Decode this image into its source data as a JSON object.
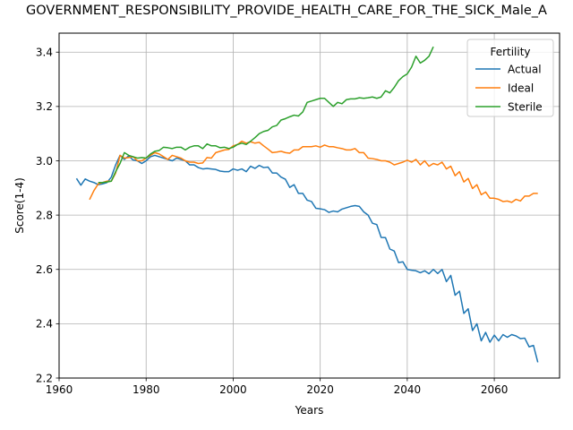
{
  "chart_data": {
    "type": "line",
    "title": "GOVERNMENT_RESPONSIBILITY_PROVIDE_HEALTH_CARE_FOR_THE_SICK_Male_A",
    "xlabel": "Years",
    "ylabel": "Score(1-4)",
    "xlim": [
      1960,
      2075
    ],
    "ylim": [
      2.2,
      3.47
    ],
    "xticks": [
      1960,
      1980,
      2000,
      2020,
      2040,
      2060
    ],
    "yticks": [
      2.2,
      2.4,
      2.6,
      2.8,
      3.0,
      3.2,
      3.4
    ],
    "xtick_labels": [
      "1960",
      "1980",
      "2000",
      "2020",
      "2040",
      "2060"
    ],
    "ytick_labels": [
      "2.2",
      "2.4",
      "2.6",
      "2.8",
      "3.0",
      "3.2",
      "3.4"
    ],
    "grid": true,
    "legend": {
      "title": "Fertility",
      "placement": "top-right"
    },
    "series": [
      {
        "name": "Actual",
        "color": "#1f77b4",
        "x": [
          1964,
          1965,
          1966,
          1967,
          1968,
          1969,
          1970,
          1971,
          1972,
          1973,
          1974,
          1975,
          1976,
          1977,
          1978,
          1979,
          1980,
          1981,
          1982,
          1983,
          1984,
          1985,
          1986,
          1987,
          1988,
          1989,
          1990,
          1991,
          1992,
          1993,
          1994,
          1995,
          1996,
          1997,
          1998,
          1999,
          2000,
          2001,
          2002,
          2003,
          2004,
          2005,
          2006,
          2007,
          2008,
          2009,
          2010,
          2011,
          2012,
          2013,
          2014,
          2015,
          2016,
          2017,
          2018,
          2019,
          2020,
          2021,
          2022,
          2023,
          2024,
          2025,
          2026,
          2027,
          2028,
          2029,
          2030,
          2031,
          2032,
          2033,
          2034,
          2035,
          2036,
          2037,
          2038,
          2039,
          2040,
          2041,
          2042,
          2043,
          2044,
          2045,
          2046,
          2047,
          2048,
          2049,
          2050,
          2051,
          2052,
          2053,
          2054,
          2055,
          2056,
          2057,
          2058,
          2059,
          2060,
          2061,
          2062,
          2063,
          2064,
          2065,
          2066,
          2067,
          2068,
          2069,
          2070
        ],
        "values": [
          2.935,
          2.91,
          2.933,
          2.925,
          2.92,
          2.912,
          2.915,
          2.92,
          2.94,
          2.985,
          3.02,
          3.005,
          3.018,
          3.003,
          3.0,
          2.99,
          3.0,
          3.015,
          3.02,
          3.015,
          3.01,
          3.005,
          3.0,
          3.01,
          3.005,
          3.0,
          2.985,
          2.985,
          2.975,
          2.97,
          2.972,
          2.97,
          2.968,
          2.962,
          2.96,
          2.96,
          2.97,
          2.965,
          2.97,
          2.96,
          2.98,
          2.972,
          2.983,
          2.975,
          2.977,
          2.955,
          2.955,
          2.94,
          2.932,
          2.902,
          2.912,
          2.88,
          2.88,
          2.855,
          2.85,
          2.825,
          2.823,
          2.82,
          2.81,
          2.815,
          2.812,
          2.822,
          2.827,
          2.832,
          2.835,
          2.832,
          2.812,
          2.8,
          2.77,
          2.765,
          2.718,
          2.717,
          2.675,
          2.668,
          2.625,
          2.628,
          2.6,
          2.597,
          2.595,
          2.588,
          2.595,
          2.584,
          2.6,
          2.585,
          2.6,
          2.555,
          2.578,
          2.505,
          2.52,
          2.438,
          2.455,
          2.375,
          2.4,
          2.337,
          2.368,
          2.332,
          2.358,
          2.337,
          2.36,
          2.35,
          2.36,
          2.355,
          2.345,
          2.347,
          2.315,
          2.32,
          2.258
        ]
      },
      {
        "name": "Ideal",
        "color": "#ff7f0e",
        "x": [
          1967,
          1968,
          1969,
          1970,
          1971,
          1972,
          1973,
          1974,
          1975,
          1976,
          1977,
          1978,
          1979,
          1980,
          1981,
          1982,
          1983,
          1984,
          1985,
          1986,
          1987,
          1988,
          1989,
          1990,
          1991,
          1992,
          1993,
          1994,
          1995,
          1996,
          1997,
          1998,
          1999,
          2000,
          2001,
          2002,
          2003,
          2004,
          2005,
          2006,
          2007,
          2008,
          2009,
          2010,
          2011,
          2012,
          2013,
          2014,
          2015,
          2016,
          2017,
          2018,
          2019,
          2020,
          2021,
          2022,
          2023,
          2024,
          2025,
          2026,
          2027,
          2028,
          2029,
          2030,
          2031,
          2032,
          2033,
          2034,
          2035,
          2036,
          2037,
          2038,
          2039,
          2040,
          2041,
          2042,
          2043,
          2044,
          2045,
          2046,
          2047,
          2048,
          2049,
          2050,
          2051,
          2052,
          2053,
          2054,
          2055,
          2056,
          2057,
          2058,
          2059,
          2060,
          2061,
          2062,
          2063,
          2064,
          2065,
          2066,
          2067,
          2068,
          2069,
          2070
        ],
        "values": [
          2.857,
          2.89,
          2.915,
          2.92,
          2.925,
          2.925,
          2.955,
          3.02,
          3.01,
          3.012,
          3.015,
          3.0,
          3.0,
          3.01,
          3.02,
          3.03,
          3.025,
          3.015,
          3.005,
          3.02,
          3.015,
          3.01,
          3.0,
          2.995,
          2.995,
          2.99,
          2.992,
          3.012,
          3.01,
          3.03,
          3.035,
          3.04,
          3.042,
          3.055,
          3.06,
          3.072,
          3.065,
          3.07,
          3.065,
          3.068,
          3.055,
          3.043,
          3.03,
          3.032,
          3.035,
          3.03,
          3.028,
          3.04,
          3.04,
          3.052,
          3.052,
          3.052,
          3.055,
          3.05,
          3.058,
          3.052,
          3.052,
          3.048,
          3.045,
          3.04,
          3.04,
          3.045,
          3.03,
          3.03,
          3.01,
          3.008,
          3.005,
          3.0,
          3.0,
          2.995,
          2.985,
          2.99,
          2.995,
          3.002,
          2.995,
          3.005,
          2.985,
          3.0,
          2.98,
          2.99,
          2.985,
          2.995,
          2.97,
          2.98,
          2.945,
          2.96,
          2.922,
          2.935,
          2.898,
          2.912,
          2.875,
          2.885,
          2.862,
          2.862,
          2.858,
          2.85,
          2.852,
          2.847,
          2.858,
          2.852,
          2.87,
          2.87,
          2.88,
          2.88
        ]
      },
      {
        "name": "Sterile",
        "color": "#2ca02c",
        "x": [
          1969,
          1970,
          1971,
          1972,
          1973,
          1974,
          1975,
          1976,
          1977,
          1978,
          1979,
          1980,
          1981,
          1982,
          1983,
          1984,
          1985,
          1986,
          1987,
          1988,
          1989,
          1990,
          1991,
          1992,
          1993,
          1994,
          1995,
          1996,
          1997,
          1998,
          1999,
          2000,
          2001,
          2002,
          2003,
          2004,
          2005,
          2006,
          2007,
          2008,
          2009,
          2010,
          2011,
          2012,
          2013,
          2014,
          2015,
          2016,
          2017,
          2018,
          2019,
          2020,
          2021,
          2022,
          2023,
          2024,
          2025,
          2026,
          2027,
          2028,
          2029,
          2030,
          2031,
          2032,
          2033,
          2034,
          2035,
          2036,
          2037,
          2038,
          2039,
          2040,
          2041,
          2042,
          2043,
          2044,
          2045,
          2046
        ],
        "values": [
          2.92,
          2.92,
          2.922,
          2.925,
          2.96,
          2.99,
          3.03,
          3.02,
          3.015,
          3.01,
          3.012,
          3.01,
          3.025,
          3.035,
          3.038,
          3.05,
          3.048,
          3.045,
          3.05,
          3.05,
          3.04,
          3.05,
          3.055,
          3.055,
          3.045,
          3.062,
          3.055,
          3.055,
          3.048,
          3.05,
          3.045,
          3.05,
          3.06,
          3.065,
          3.06,
          3.072,
          3.085,
          3.1,
          3.108,
          3.112,
          3.125,
          3.13,
          3.15,
          3.155,
          3.162,
          3.168,
          3.165,
          3.18,
          3.215,
          3.22,
          3.225,
          3.23,
          3.23,
          3.215,
          3.2,
          3.215,
          3.21,
          3.225,
          3.228,
          3.228,
          3.232,
          3.23,
          3.232,
          3.235,
          3.23,
          3.235,
          3.258,
          3.25,
          3.27,
          3.295,
          3.31,
          3.32,
          3.345,
          3.385,
          3.36,
          3.37,
          3.385,
          3.42
        ]
      }
    ]
  }
}
